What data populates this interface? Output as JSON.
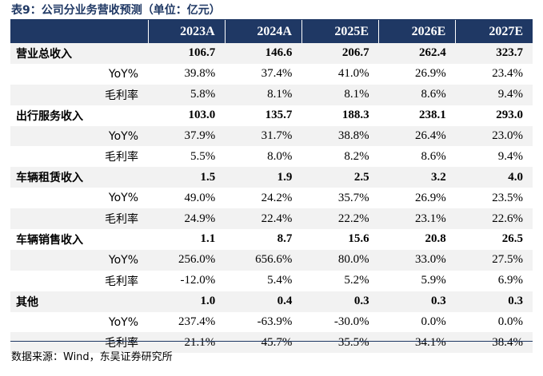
{
  "title": "表9：公司分业务营收预测（单位：亿元）",
  "header": {
    "corner": "",
    "years": [
      "2023A",
      "2024A",
      "2025E",
      "2026E",
      "2027E"
    ]
  },
  "rows": [
    {
      "label": "营业总收入",
      "type": "main",
      "values": [
        "106.7",
        "146.6",
        "206.7",
        "262.4",
        "323.7"
      ]
    },
    {
      "label": "YoY%",
      "type": "sub",
      "values": [
        "39.8%",
        "37.4%",
        "41.0%",
        "26.9%",
        "23.4%"
      ]
    },
    {
      "label": "毛利率",
      "type": "sub",
      "values": [
        "5.8%",
        "8.1%",
        "8.1%",
        "8.6%",
        "9.4%"
      ]
    },
    {
      "label": "出行服务收入",
      "type": "main",
      "values": [
        "103.0",
        "135.7",
        "188.3",
        "238.1",
        "293.0"
      ]
    },
    {
      "label": "YoY%",
      "type": "sub",
      "values": [
        "37.9%",
        "31.7%",
        "38.8%",
        "26.4%",
        "23.0%"
      ]
    },
    {
      "label": "毛利率",
      "type": "sub",
      "values": [
        "5.5%",
        "8.0%",
        "8.2%",
        "8.6%",
        "9.4%"
      ]
    },
    {
      "label": "车辆租赁收入",
      "type": "main",
      "values": [
        "1.5",
        "1.9",
        "2.5",
        "3.2",
        "4.0"
      ]
    },
    {
      "label": "YoY%",
      "type": "sub",
      "values": [
        "49.0%",
        "24.2%",
        "35.7%",
        "26.9%",
        "23.5%"
      ]
    },
    {
      "label": "毛利率",
      "type": "sub",
      "values": [
        "24.9%",
        "22.4%",
        "22.2%",
        "23.1%",
        "22.6%"
      ]
    },
    {
      "label": "车辆销售收入",
      "type": "main",
      "values": [
        "1.1",
        "8.7",
        "15.6",
        "20.8",
        "26.5"
      ]
    },
    {
      "label": "YoY%",
      "type": "sub",
      "values": [
        "256.0%",
        "656.6%",
        "80.0%",
        "33.0%",
        "27.5%"
      ]
    },
    {
      "label": "毛利率",
      "type": "sub",
      "values": [
        "-12.0%",
        "5.4%",
        "5.2%",
        "5.9%",
        "6.9%"
      ]
    },
    {
      "label": "其他",
      "type": "main",
      "values": [
        "1.0",
        "0.4",
        "0.3",
        "0.3",
        "0.3"
      ]
    },
    {
      "label": "YoY%",
      "type": "sub",
      "values": [
        "237.4%",
        "-63.9%",
        "-30.0%",
        "0.0%",
        "0.0%"
      ]
    },
    {
      "label": "毛利率",
      "type": "sub",
      "values": [
        "21.1%",
        "45.7%",
        "35.5%",
        "34.1%",
        "38.4%"
      ]
    }
  ],
  "source": "数据来源：Wind，东吴证券研究所"
}
